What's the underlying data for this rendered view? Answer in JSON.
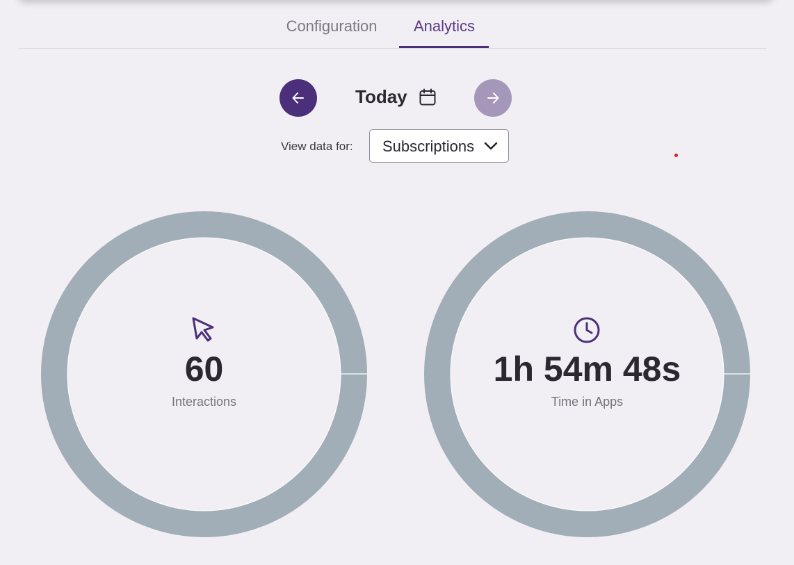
{
  "tabs": {
    "configuration": "Configuration",
    "analytics": "Analytics",
    "active": "Analytics"
  },
  "date_nav": {
    "label": "Today",
    "prev_icon": "arrow-left-icon",
    "next_icon": "arrow-right-icon",
    "calendar_icon": "calendar-icon"
  },
  "filter": {
    "label": "View data for:",
    "selected": "Subscriptions"
  },
  "metrics": [
    {
      "icon": "cursor-pointer-icon",
      "value": "60",
      "label": "Interactions"
    },
    {
      "icon": "clock-icon",
      "value": "1h 54m 48s",
      "label": "Time in Apps"
    }
  ],
  "colors": {
    "background": "#f2eff4",
    "accent": "#4b2f7a",
    "accent_muted": "#a497b9",
    "ring": "#a2aeb7"
  }
}
